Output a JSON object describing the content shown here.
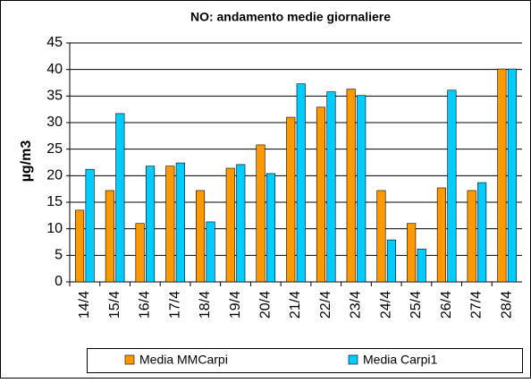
{
  "chart_data": {
    "type": "bar",
    "title": "NO: andamento medie  giornaliere",
    "ylabel": "µg/m3",
    "categories": [
      "14/4",
      "15/4",
      "16/4",
      "17/4",
      "18/4",
      "19/4",
      "20/4",
      "21/4",
      "22/4",
      "23/4",
      "24/4",
      "25/4",
      "26/4",
      "27/4",
      "28/4"
    ],
    "series": [
      {
        "name": "Media MMCarpi",
        "color": "#ff9900",
        "values": [
          13.5,
          17.2,
          11,
          21.8,
          17.2,
          21.4,
          25.8,
          31,
          32.9,
          36.3,
          17.2,
          11,
          17.7,
          17.2,
          40.1
        ]
      },
      {
        "name": "Media Carpi1",
        "color": "#00ccff",
        "values": [
          21.2,
          31.7,
          21.8,
          22.4,
          11.3,
          22.1,
          20.4,
          37.3,
          35.8,
          35.1,
          7.9,
          6.2,
          36.1,
          18.7,
          40.1
        ]
      }
    ],
    "ylim": [
      0,
      45
    ],
    "yticks": [
      0,
      5,
      10,
      15,
      20,
      25,
      30,
      35,
      40,
      45
    ],
    "grid": true,
    "legend": "bottom"
  }
}
